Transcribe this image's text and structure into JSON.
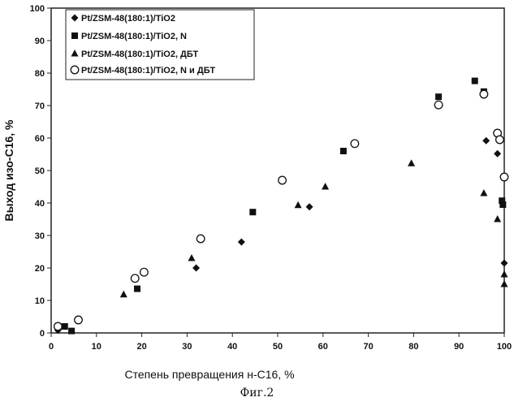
{
  "chart_data": {
    "type": "scatter",
    "title": "",
    "xlabel": "Степень превращения н-С16, %",
    "ylabel": "Выход изо-С16, %",
    "xlim": [
      0,
      100
    ],
    "ylim": [
      0,
      100
    ],
    "x_ticks": [
      "0",
      "10",
      "20",
      "30",
      "40",
      "50",
      "60",
      "70",
      "80",
      "90",
      "100"
    ],
    "y_ticks": [
      "0",
      "10",
      "20",
      "30",
      "40",
      "50",
      "60",
      "70",
      "80",
      "90",
      "100"
    ],
    "grid": false,
    "legend_position": "top-left",
    "series": [
      {
        "name": "Pt/ZSM-48(180:1)/TiO2",
        "marker": "diamond",
        "color": "#111111",
        "points": [
          [
            1.5,
            0.8
          ],
          [
            32,
            20
          ],
          [
            42,
            28
          ],
          [
            57,
            38.8
          ],
          [
            96,
            59.2
          ],
          [
            98.5,
            55.2
          ],
          [
            100,
            21.5
          ]
        ]
      },
      {
        "name": "Pt/ZSM-48(180:1)/TiO2, N",
        "marker": "square",
        "color": "#111111",
        "points": [
          [
            3,
            2
          ],
          [
            4.5,
            0.6
          ],
          [
            19,
            13.6
          ],
          [
            44.5,
            37.2
          ],
          [
            64.5,
            56
          ],
          [
            85.5,
            72.7
          ],
          [
            93.5,
            77.6
          ],
          [
            95.5,
            74.3
          ],
          [
            99.5,
            40.7
          ],
          [
            99.7,
            39.5
          ]
        ]
      },
      {
        "name": "Pt/ZSM-48(180:1)/TiO2, ДБТ",
        "marker": "triangle",
        "color": "#111111",
        "points": [
          [
            16,
            11.8
          ],
          [
            31,
            23
          ],
          [
            54.5,
            39.3
          ],
          [
            60.5,
            45
          ],
          [
            79.5,
            52.2
          ],
          [
            95.5,
            43
          ],
          [
            98.5,
            35
          ],
          [
            100,
            18
          ],
          [
            100,
            15
          ]
        ]
      },
      {
        "name": "Pt/ZSM-48(180:1)/TiO2, N и ДБТ",
        "marker": "circle-open",
        "color": "#111111",
        "points": [
          [
            1.5,
            2
          ],
          [
            6,
            4
          ],
          [
            18.5,
            16.8
          ],
          [
            20.5,
            18.7
          ],
          [
            33,
            29
          ],
          [
            51,
            47
          ],
          [
            67,
            58.3
          ],
          [
            85.5,
            70.2
          ],
          [
            95.5,
            73.5
          ],
          [
            98.5,
            61.5
          ],
          [
            99,
            59.5
          ],
          [
            100,
            48
          ]
        ]
      }
    ]
  },
  "caption": "Фиг.2"
}
